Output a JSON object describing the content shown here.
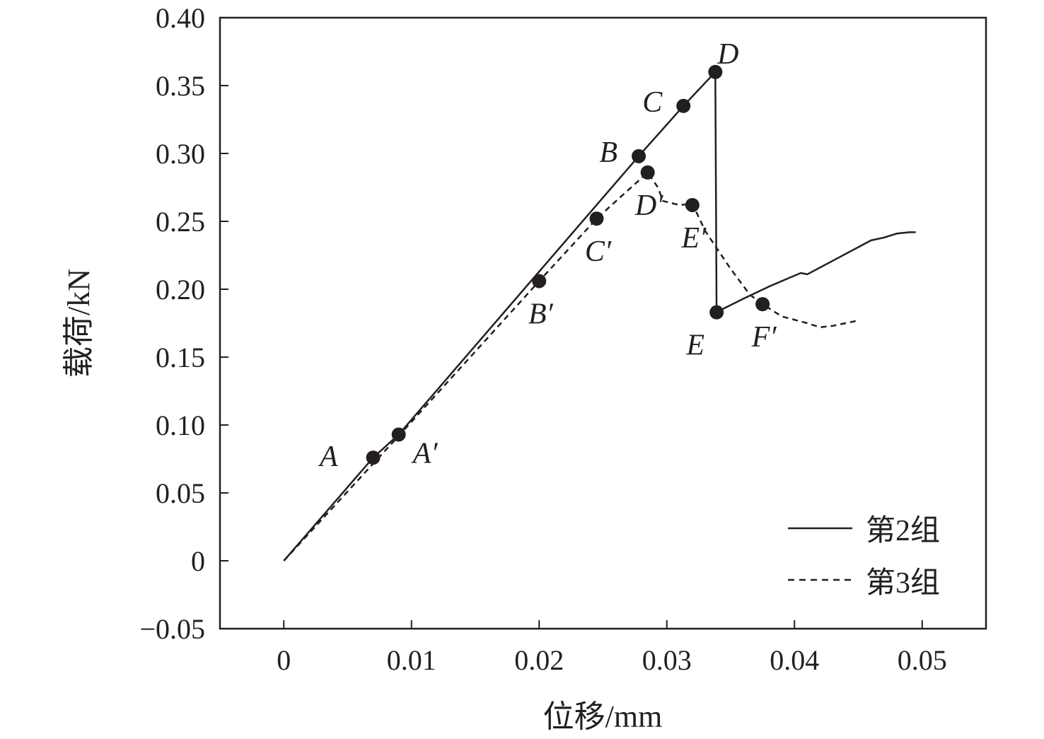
{
  "chart_data": {
    "type": "line",
    "xlabel": "位移/mm",
    "ylabel": "载荷/kN",
    "xlim": [
      -0.005,
      0.055
    ],
    "ylim": [
      -0.05,
      0.4
    ],
    "x_ticks": [
      0,
      0.01,
      0.02,
      0.03,
      0.04,
      0.05
    ],
    "x_tick_labels": [
      "0",
      "0.01",
      "0.02",
      "0.03",
      "0.04",
      "0.05"
    ],
    "y_ticks": [
      -0.05,
      0,
      0.05,
      0.1,
      0.15,
      0.2,
      0.25,
      0.3,
      0.35,
      0.4
    ],
    "y_tick_labels": [
      "−0.05",
      "0",
      "0.05",
      "0.10",
      "0.15",
      "0.20",
      "0.25",
      "0.30",
      "0.35",
      "0.40"
    ],
    "grid": false,
    "legend_position": "bottom-right",
    "series": [
      {
        "name": "第2组",
        "style": "solid",
        "color": "#231f20",
        "x": [
          0,
          0.007,
          0.009,
          0.02,
          0.0278,
          0.0313,
          0.0338,
          0.0338,
          0.0339,
          0.0345,
          0.036,
          0.038,
          0.0395,
          0.0405,
          0.041,
          0.043,
          0.045,
          0.046,
          0.047,
          0.048,
          0.049,
          0.0495
        ],
        "y": [
          0,
          0.076,
          0.093,
          0.213,
          0.298,
          0.335,
          0.36,
          0.36,
          0.183,
          0.186,
          0.193,
          0.202,
          0.208,
          0.212,
          0.211,
          0.221,
          0.231,
          0.236,
          0.238,
          0.241,
          0.242,
          0.242
        ]
      },
      {
        "name": "第3组",
        "style": "dashed",
        "color": "#231f20",
        "x": [
          0,
          0.009,
          0.02,
          0.0245,
          0.0285,
          0.0293,
          0.0297,
          0.031,
          0.032,
          0.033,
          0.035,
          0.0365,
          0.0375,
          0.039,
          0.041,
          0.042,
          0.043,
          0.044,
          0.045
        ],
        "y": [
          0,
          0.092,
          0.206,
          0.252,
          0.286,
          0.275,
          0.265,
          0.262,
          0.263,
          0.243,
          0.215,
          0.196,
          0.189,
          0.18,
          0.175,
          0.172,
          0.173,
          0.175,
          0.177
        ]
      }
    ],
    "markers": [
      {
        "label": "A",
        "x": 0.007,
        "y": 0.076,
        "anchor": "left"
      },
      {
        "label": "A′",
        "x": 0.009,
        "y": 0.093,
        "anchor": "lower-right"
      },
      {
        "label": "B′",
        "x": 0.02,
        "y": 0.206,
        "anchor": "below"
      },
      {
        "label": "C′",
        "x": 0.0245,
        "y": 0.252,
        "anchor": "below"
      },
      {
        "label": "B",
        "x": 0.0278,
        "y": 0.298,
        "anchor": "upper-left"
      },
      {
        "label": "D′",
        "x": 0.0285,
        "y": 0.286,
        "anchor": "below"
      },
      {
        "label": "E′",
        "x": 0.032,
        "y": 0.262,
        "anchor": "below"
      },
      {
        "label": "C",
        "x": 0.0313,
        "y": 0.335,
        "anchor": "upper-left"
      },
      {
        "label": "D",
        "x": 0.0338,
        "y": 0.36,
        "anchor": "above"
      },
      {
        "label": "E",
        "x": 0.0339,
        "y": 0.183,
        "anchor": "lower-left"
      },
      {
        "label": "F′",
        "x": 0.0375,
        "y": 0.189,
        "anchor": "below"
      }
    ]
  }
}
